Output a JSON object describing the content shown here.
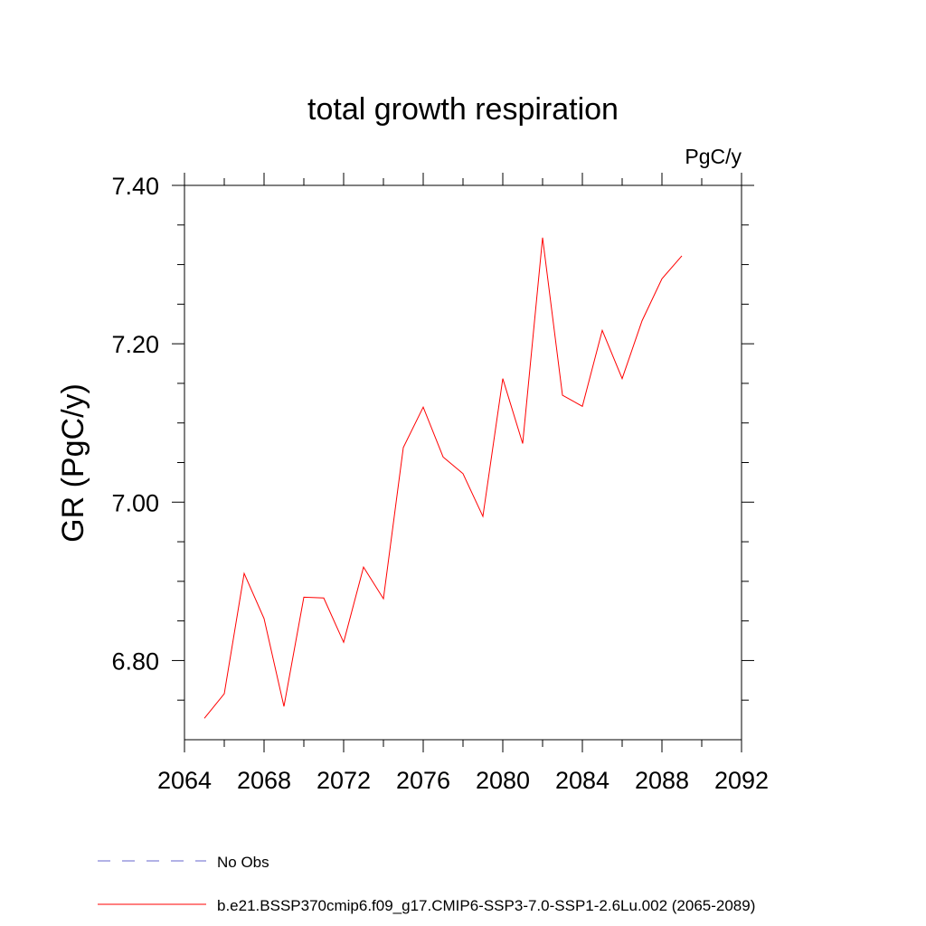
{
  "chart_data": {
    "type": "line",
    "title": "total growth respiration",
    "units_label": "PgC/y",
    "ylabel": "GR  (PgC/y)",
    "xlabel": "",
    "xlim": [
      2064,
      2092
    ],
    "ylim": [
      6.7,
      7.4
    ],
    "x_ticks": [
      2064,
      2068,
      2072,
      2076,
      2080,
      2084,
      2088,
      2092
    ],
    "x_minor_ticks": [
      2066,
      2070,
      2074,
      2078,
      2082,
      2086,
      2090
    ],
    "y_ticks": [
      6.8,
      7.0,
      7.2,
      7.4
    ],
    "y_tick_labels": [
      "6.80",
      "7.00",
      "7.20",
      "7.40"
    ],
    "y_minor_ticks": [
      6.75,
      6.85,
      6.9,
      6.95,
      7.05,
      7.1,
      7.15,
      7.25,
      7.3,
      7.35
    ],
    "grid": false,
    "series": [
      {
        "name": "b.e21.BSSP370cmip6.f09_g17.CMIP6-SSP3-7.0-SSP1-2.6Lu.002 (2065-2089)",
        "color": "#ff0000",
        "x": [
          2065,
          2066,
          2067,
          2068,
          2069,
          2070,
          2071,
          2072,
          2073,
          2074,
          2075,
          2076,
          2077,
          2078,
          2079,
          2080,
          2081,
          2082,
          2083,
          2084,
          2085,
          2086,
          2087,
          2088,
          2089
        ],
        "values": [
          6.727,
          6.758,
          6.91,
          6.853,
          6.742,
          6.88,
          6.879,
          6.823,
          6.918,
          6.878,
          7.069,
          7.12,
          7.057,
          7.036,
          6.982,
          7.156,
          7.074,
          7.334,
          7.135,
          7.121,
          7.217,
          7.156,
          7.229,
          7.282,
          7.311
        ]
      }
    ],
    "legend": {
      "placement": "bottom-left",
      "entries": [
        {
          "label": "No Obs",
          "color": "#6666cc",
          "style": "dashed"
        },
        {
          "label": "b.e21.BSSP370cmip6.f09_g17.CMIP6-SSP3-7.0-SSP1-2.6Lu.002 (2065-2089)",
          "color": "#ff0000",
          "style": "solid"
        }
      ]
    }
  }
}
